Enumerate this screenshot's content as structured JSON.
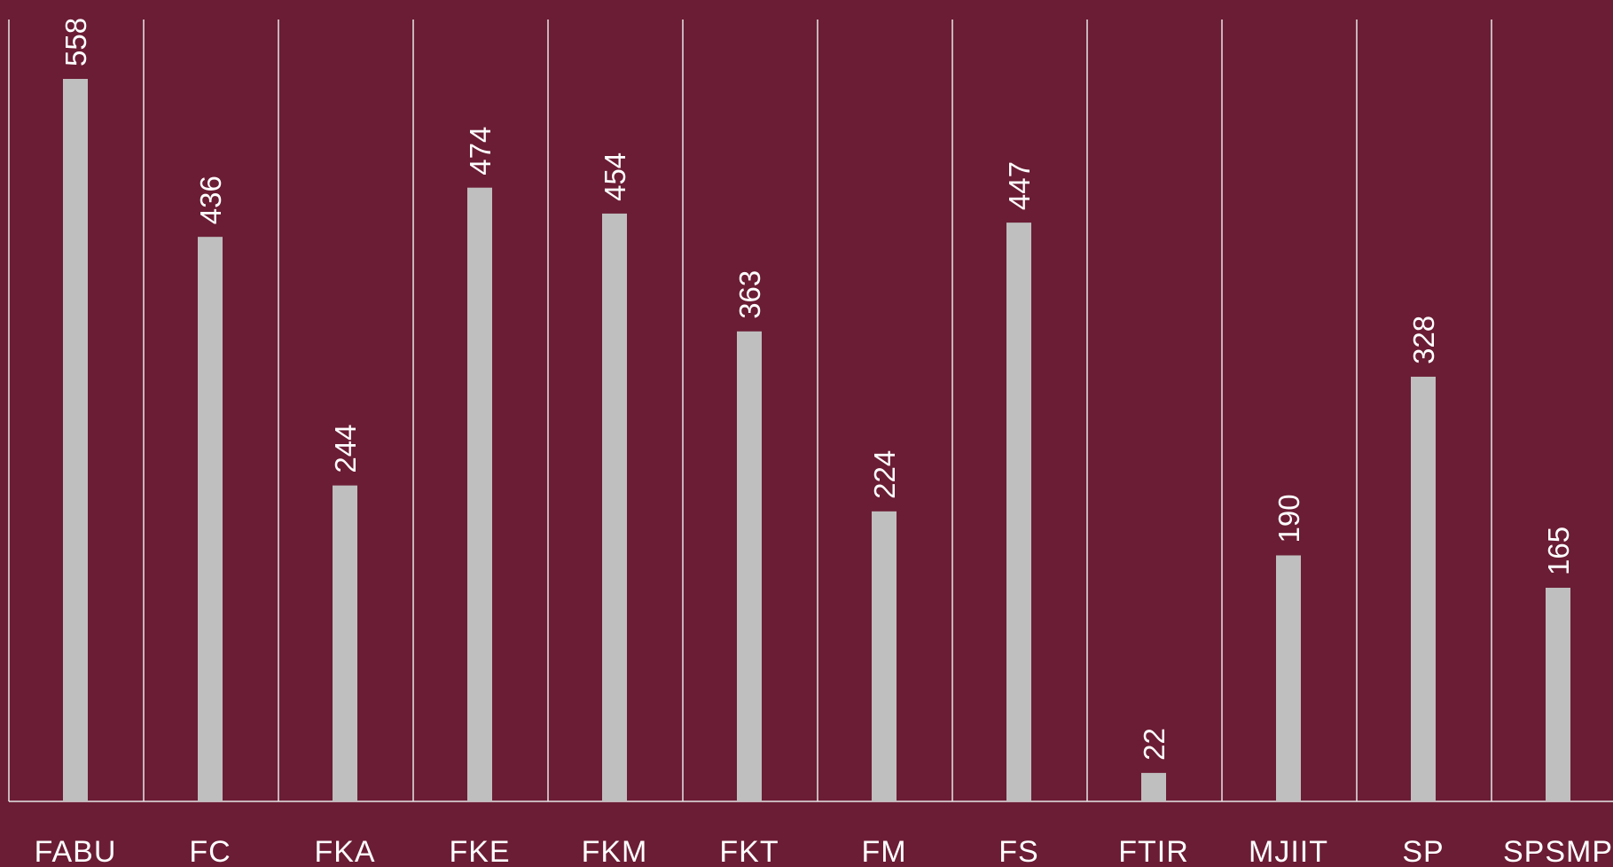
{
  "chart_data": {
    "type": "bar",
    "categories": [
      "FABU",
      "FC",
      "FKA",
      "FKE",
      "FKM",
      "FKT",
      "FM",
      "FS",
      "FTIR",
      "MJIIT",
      "SP",
      "SPSMP"
    ],
    "values": [
      558,
      436,
      244,
      474,
      454,
      363,
      224,
      447,
      22,
      190,
      328,
      165
    ],
    "title": "",
    "xlabel": "",
    "ylabel": "",
    "ylim": [
      0,
      600
    ],
    "grid": "vertical category separators",
    "legend": "none"
  },
  "colors": {
    "background": "#6b1d35",
    "bar": "#bfbfbf",
    "gridline": "#e6e6e6",
    "text": "#ffffff"
  }
}
